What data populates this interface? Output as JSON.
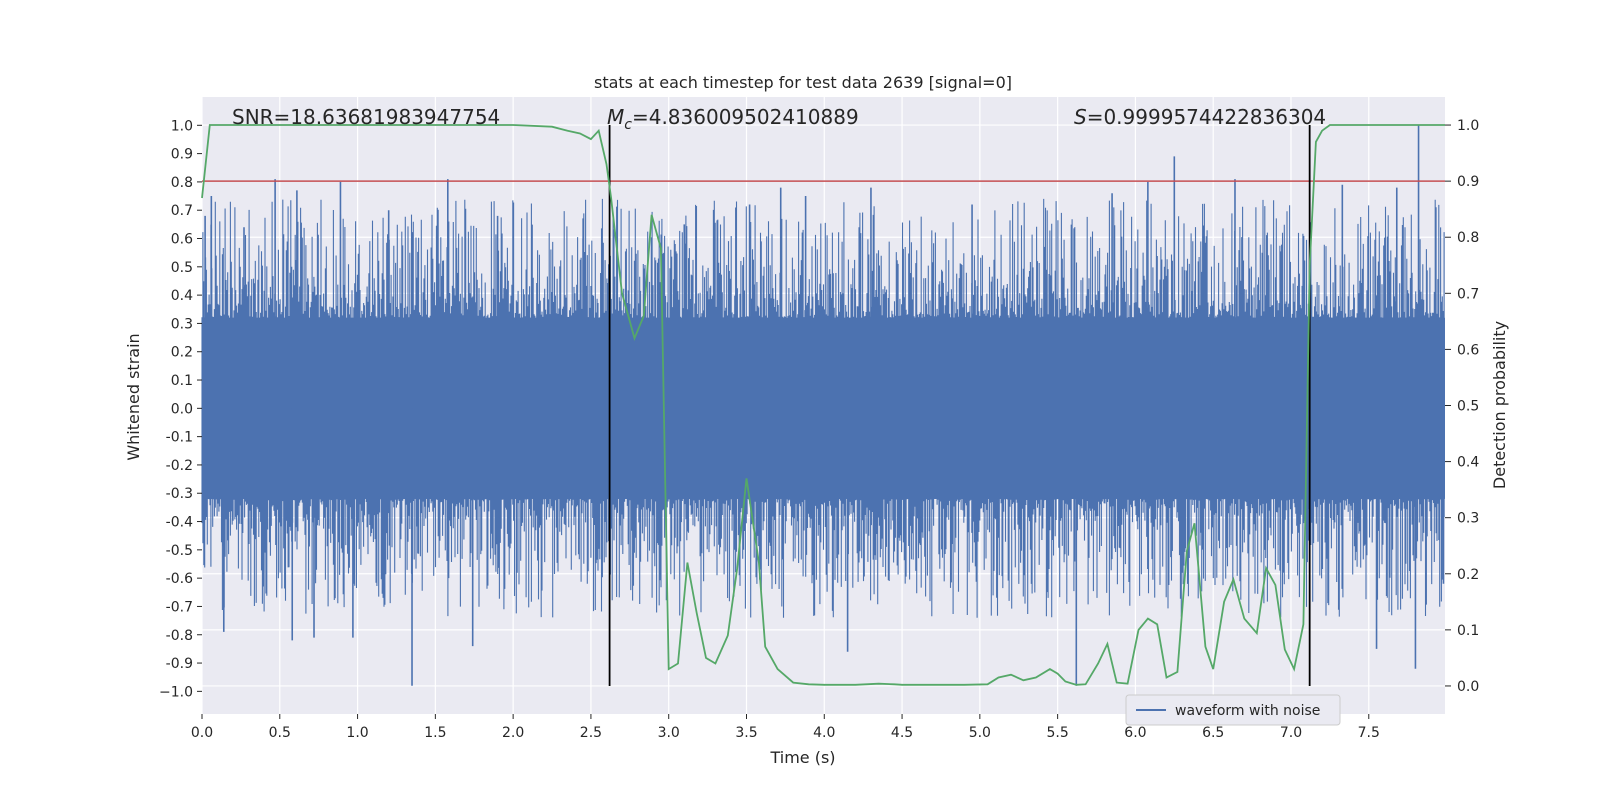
{
  "chart_data": {
    "type": "line",
    "title": "stats at each timestep for test data 2639 [signal=0]",
    "xlabel": "Time (s)",
    "ylabel": "Whitened strain",
    "ylabel_right": "Detection probability",
    "xlim": [
      0.0,
      7.99
    ],
    "ylim": [
      -1.08,
      1.1
    ],
    "ylim_right": [
      -0.05,
      1.05
    ],
    "x_ticks": [
      0.0,
      0.5,
      1.0,
      1.5,
      2.0,
      2.5,
      3.0,
      3.5,
      4.0,
      4.5,
      5.0,
      5.5,
      6.0,
      6.5,
      7.0,
      7.5
    ],
    "x_tick_labels": [
      "0.0",
      "0.5",
      "1.0",
      "1.5",
      "2.0",
      "2.5",
      "3.0",
      "3.5",
      "4.0",
      "4.5",
      "5.0",
      "5.5",
      "6.0",
      "6.5",
      "7.0",
      "7.5"
    ],
    "y_ticks": [
      1.0,
      0.9,
      0.8,
      0.7,
      0.6,
      0.5,
      0.4,
      0.3,
      0.2,
      0.1,
      0.0,
      -0.1,
      -0.2,
      -0.3,
      -0.4,
      -0.5,
      -0.6,
      -0.7,
      -0.8,
      -0.9,
      -1.0
    ],
    "y_tick_labels": [
      "1.0",
      "0.9",
      "0.8",
      "0.7",
      "0.6",
      "0.5",
      "0.4",
      "0.3",
      "0.2",
      "0.1",
      "0.0",
      "-0.1",
      "-0.2",
      "-0.3",
      "-0.4",
      "-0.5",
      "-0.6",
      "-0.7",
      "-0.8",
      "-0.9",
      "−1.0"
    ],
    "y_right_ticks": [
      1.0,
      0.9,
      0.8,
      0.7,
      0.6,
      0.5,
      0.4,
      0.3,
      0.2,
      0.1,
      0.0
    ],
    "y_right_tick_labels": [
      "1.0",
      "0.9",
      "0.8",
      "0.7",
      "0.6",
      "0.5",
      "0.4",
      "0.3",
      "0.2",
      "0.1",
      "0.0"
    ],
    "annotations": {
      "snr": "SNR=18.63681983947754",
      "mc_symbol": "M",
      "mc_sub": "c",
      "mc_value": "=4.836009502410889",
      "s_symbol": "S",
      "s_value": "=0.9999574422836304"
    },
    "threshold_right": 0.9,
    "markers_x": [
      2.62,
      7.12
    ],
    "legend": [
      "waveform with noise"
    ],
    "legend_position": "lower-right",
    "series": [
      {
        "name": "waveform with noise",
        "axis": "left",
        "style": "dense-noise",
        "core_envelope": 0.32,
        "peaks": [
          {
            "x": 0.02,
            "y": 0.68
          },
          {
            "x": 0.06,
            "y": 0.75
          },
          {
            "x": 0.14,
            "y": -0.79
          },
          {
            "x": 0.27,
            "y": 0.64
          },
          {
            "x": 0.47,
            "y": 0.81
          },
          {
            "x": 0.58,
            "y": -0.82
          },
          {
            "x": 0.61,
            "y": 0.77
          },
          {
            "x": 0.72,
            "y": -0.81
          },
          {
            "x": 0.89,
            "y": 0.8
          },
          {
            "x": 0.97,
            "y": -0.81
          },
          {
            "x": 1.2,
            "y": 0.7
          },
          {
            "x": 1.35,
            "y": -0.98
          },
          {
            "x": 1.58,
            "y": 0.81
          },
          {
            "x": 1.74,
            "y": -0.84
          },
          {
            "x": 1.9,
            "y": 0.68
          },
          {
            "x": 2.45,
            "y": 0.6
          },
          {
            "x": 3.1,
            "y": 0.65
          },
          {
            "x": 3.52,
            "y": 0.72
          },
          {
            "x": 3.72,
            "y": 0.78
          },
          {
            "x": 3.88,
            "y": 0.75
          },
          {
            "x": 4.15,
            "y": -0.86
          },
          {
            "x": 4.3,
            "y": 0.78
          },
          {
            "x": 4.95,
            "y": 0.72
          },
          {
            "x": 5.62,
            "y": -0.98
          },
          {
            "x": 5.85,
            "y": 0.76
          },
          {
            "x": 6.08,
            "y": 0.8
          },
          {
            "x": 6.25,
            "y": 0.89
          },
          {
            "x": 6.64,
            "y": 0.81
          },
          {
            "x": 7.33,
            "y": 0.79
          },
          {
            "x": 7.55,
            "y": -0.85
          },
          {
            "x": 7.68,
            "y": 0.78
          },
          {
            "x": 7.8,
            "y": -0.92
          },
          {
            "x": 7.82,
            "y": 1.0
          },
          {
            "x": 7.98,
            "y": -0.62
          }
        ]
      },
      {
        "name": "detection probability",
        "axis": "right",
        "x": [
          0.0,
          0.05,
          0.1,
          0.5,
          1.0,
          2.0,
          2.25,
          2.35,
          2.43,
          2.5,
          2.55,
          2.6,
          2.63,
          2.7,
          2.78,
          2.84,
          2.89,
          2.95,
          3.0,
          3.06,
          3.12,
          3.18,
          3.24,
          3.3,
          3.38,
          3.44,
          3.5,
          3.58,
          3.62,
          3.7,
          3.8,
          3.9,
          4.0,
          4.2,
          4.35,
          4.45,
          4.5,
          4.7,
          4.9,
          5.05,
          5.12,
          5.2,
          5.28,
          5.36,
          5.45,
          5.5,
          5.55,
          5.62,
          5.68,
          5.76,
          5.82,
          5.88,
          5.95,
          6.02,
          6.08,
          6.14,
          6.2,
          6.27,
          6.33,
          6.38,
          6.45,
          6.5,
          6.57,
          6.63,
          6.7,
          6.78,
          6.84,
          6.9,
          6.96,
          7.02,
          7.08,
          7.12,
          7.16,
          7.2,
          7.25,
          7.3,
          7.5,
          7.99
        ],
        "y": [
          0.87,
          1.0,
          1.0,
          1.0,
          1.0,
          1.0,
          0.997,
          0.99,
          0.985,
          0.975,
          0.99,
          0.93,
          0.87,
          0.7,
          0.62,
          0.66,
          0.84,
          0.78,
          0.03,
          0.04,
          0.22,
          0.13,
          0.05,
          0.04,
          0.09,
          0.21,
          0.37,
          0.22,
          0.07,
          0.03,
          0.006,
          0.003,
          0.002,
          0.002,
          0.004,
          0.003,
          0.002,
          0.002,
          0.002,
          0.003,
          0.015,
          0.02,
          0.01,
          0.015,
          0.03,
          0.022,
          0.008,
          0.002,
          0.003,
          0.04,
          0.075,
          0.006,
          0.004,
          0.1,
          0.12,
          0.11,
          0.015,
          0.025,
          0.24,
          0.29,
          0.07,
          0.03,
          0.15,
          0.19,
          0.12,
          0.094,
          0.21,
          0.18,
          0.065,
          0.03,
          0.11,
          0.75,
          0.97,
          0.99,
          1.0,
          1.0,
          1.0,
          1.0
        ]
      }
    ]
  }
}
